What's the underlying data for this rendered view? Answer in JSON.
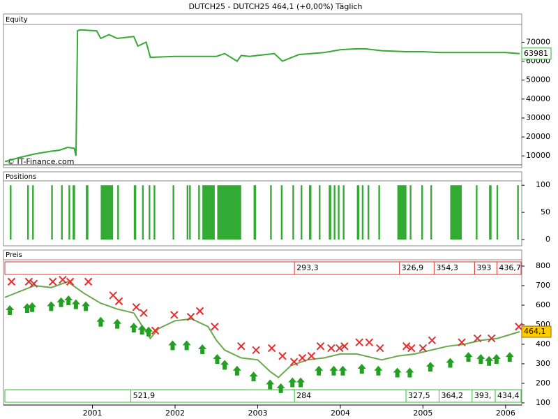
{
  "title": "DUTCH25 - DUTCH25    464,1 (+0,00%)    Täglich",
  "chart_data": [
    {
      "type": "line",
      "title": "Equity",
      "annotation": "© IT-Finance.com",
      "xlim": [
        1999.94,
        2006.17
      ],
      "ylim": [
        5300,
        79000
      ],
      "yticks": [
        10000,
        20000,
        30000,
        40000,
        50000,
        60000,
        70000
      ],
      "series": [
        {
          "name": "Equity",
          "color": "#33aa33",
          "x": [
            1999.94,
            2000.1,
            2000.3,
            2000.5,
            2000.6,
            2000.7,
            2000.78,
            2000.8,
            2000.82,
            2000.85,
            2001.05,
            2001.1,
            2001.2,
            2001.3,
            2001.5,
            2001.55,
            2001.65,
            2001.7,
            2002.0,
            2002.5,
            2002.6,
            2002.75,
            2002.8,
            2002.9,
            2003.0,
            2003.2,
            2003.3,
            2003.5,
            2003.8,
            2004.0,
            2004.2,
            2004.3,
            2004.5,
            2004.8,
            2005.0,
            2005.2,
            2005.5,
            2005.8,
            2006.0,
            2006.17
          ],
          "values": [
            7000,
            9000,
            11000,
            12500,
            13000,
            14500,
            14000,
            10000,
            76000,
            76500,
            76000,
            72000,
            74000,
            72000,
            73000,
            68000,
            70000,
            62000,
            62500,
            62500,
            64000,
            60000,
            63000,
            62500,
            63000,
            64000,
            60000,
            63500,
            64500,
            66000,
            66500,
            66500,
            65500,
            65000,
            65000,
            64500,
            64500,
            64500,
            64500,
            63981
          ]
        }
      ]
    },
    {
      "type": "bar",
      "title": "Positions",
      "xlim": [
        1999.94,
        2006.17
      ],
      "ylim": [
        -9,
        108
      ],
      "yticks": [
        0,
        50,
        100
      ],
      "color": "#33aa33",
      "x0": [
        2000.0,
        2000.21,
        2000.27,
        2000.5,
        2000.62,
        2000.71,
        2000.76,
        2000.92,
        2001.1,
        2001.3,
        2001.5,
        2001.6,
        2001.68,
        2001.74,
        2001.97,
        2002.14,
        2002.17,
        2002.28,
        2002.33,
        2002.51,
        2002.95,
        2003.15,
        2003.28,
        2003.42,
        2003.52,
        2003.62,
        2003.74,
        2003.86,
        2003.92,
        2003.97,
        2004.03,
        2004.2,
        2004.26,
        2004.33,
        2004.46,
        2004.69,
        2004.84,
        2004.98,
        2005.09,
        2005.33,
        2005.64,
        2005.8,
        2005.89,
        2006.14
      ],
      "x1": [
        2000.02,
        2000.23,
        2000.29,
        2000.52,
        2000.64,
        2000.73,
        2000.79,
        2000.95,
        2001.25,
        2001.32,
        2001.53,
        2001.62,
        2001.7,
        2001.76,
        2001.99,
        2002.16,
        2002.19,
        2002.3,
        2002.48,
        2002.8,
        2002.98,
        2003.17,
        2003.3,
        2003.44,
        2003.54,
        2003.65,
        2003.76,
        2003.89,
        2003.94,
        2003.99,
        2004.05,
        2004.23,
        2004.28,
        2004.35,
        2004.48,
        2004.8,
        2004.86,
        2005.0,
        2005.11,
        2005.47,
        2005.66,
        2005.83,
        2005.91,
        2006.16
      ],
      "values": [
        100,
        100,
        100,
        100,
        100,
        100,
        100,
        100,
        100,
        100,
        100,
        100,
        100,
        100,
        100,
        100,
        100,
        100,
        100,
        100,
        100,
        100,
        100,
        100,
        100,
        100,
        100,
        100,
        100,
        100,
        100,
        100,
        100,
        100,
        100,
        100,
        100,
        100,
        100,
        100,
        100,
        100,
        100,
        100
      ]
    },
    {
      "type": "line",
      "title": "Preis",
      "last_label": "464,1",
      "xlim": [
        1999.94,
        2006.17
      ],
      "xticks": [
        2001,
        2002,
        2003,
        2004,
        2005,
        2006
      ],
      "ylim": [
        89,
        875
      ],
      "yticks": [
        100,
        200,
        300,
        400,
        500,
        600,
        700,
        800
      ],
      "series": [
        {
          "name": "Preis",
          "color": "#6aa84f",
          "x": [
            1999.94,
            2000.0,
            2000.3,
            2000.5,
            2000.7,
            2000.9,
            2001.1,
            2001.3,
            2001.5,
            2001.7,
            2001.8,
            2002.0,
            2002.2,
            2002.4,
            2002.5,
            2002.6,
            2002.8,
            2003.0,
            2003.15,
            2003.25,
            2003.4,
            2003.6,
            2003.8,
            2004.0,
            2004.2,
            2004.5,
            2004.7,
            2004.9,
            2005.1,
            2005.3,
            2005.5,
            2005.7,
            2005.9,
            2006.17
          ],
          "values": [
            640,
            650,
            700,
            690,
            720,
            660,
            610,
            580,
            560,
            430,
            480,
            520,
            530,
            490,
            420,
            370,
            330,
            320,
            260,
            230,
            290,
            320,
            330,
            350,
            350,
            320,
            340,
            350,
            370,
            390,
            400,
            420,
            430,
            464.1
          ]
        },
        {
          "name": "Kauf",
          "color": "#22a022",
          "x": [
            2000.0,
            2000.21,
            2000.27,
            2000.5,
            2000.62,
            2000.71,
            2000.8,
            2000.92,
            2001.1,
            2001.3,
            2001.5,
            2001.6,
            2001.68,
            2001.97,
            2002.14,
            2002.33,
            2002.51,
            2002.6,
            2002.75,
            2002.95,
            2003.15,
            2003.28,
            2003.42,
            2003.52,
            2003.74,
            2003.92,
            2004.03,
            2004.26,
            2004.46,
            2004.69,
            2004.84,
            2005.09,
            2005.33,
            2005.55,
            2005.7,
            2005.8,
            2005.89,
            2006.05
          ],
          "values": [
            600,
            610,
            615,
            620,
            640,
            650,
            630,
            620,
            540,
            530,
            510,
            500,
            490,
            420,
            420,
            400,
            350,
            320,
            290,
            260,
            220,
            200,
            230,
            230,
            290,
            290,
            290,
            300,
            290,
            280,
            280,
            310,
            330,
            360,
            350,
            340,
            350,
            360
          ]
        },
        {
          "name": "Verkauf",
          "color": "#e03030",
          "x": [
            2000.02,
            2000.23,
            2000.29,
            2000.52,
            2000.64,
            2000.73,
            2000.95,
            2001.25,
            2001.32,
            2001.53,
            2001.62,
            2001.76,
            2001.99,
            2002.19,
            2002.3,
            2002.48,
            2002.8,
            2002.98,
            2003.17,
            2003.3,
            2003.44,
            2003.54,
            2003.65,
            2003.76,
            2003.89,
            2003.99,
            2004.05,
            2004.23,
            2004.35,
            2004.48,
            2004.8,
            2004.86,
            2005.0,
            2005.11,
            2005.47,
            2005.66,
            2005.83,
            2006.16
          ],
          "values": [
            720,
            720,
            710,
            720,
            730,
            720,
            720,
            650,
            620,
            590,
            560,
            470,
            550,
            540,
            570,
            490,
            390,
            370,
            380,
            340,
            310,
            330,
            340,
            390,
            380,
            380,
            390,
            410,
            410,
            380,
            390,
            380,
            380,
            420,
            410,
            430,
            430,
            490
          ]
        }
      ],
      "top_labels": {
        "x": [
          2003.47,
          2004.74,
          2005.16,
          2005.65,
          2005.92
        ],
        "labels": [
          "293,3",
          "326,9",
          "354,3",
          "393",
          "436,7"
        ]
      },
      "bottom_labels": {
        "x": [
          2001.49,
          2003.47,
          2004.82,
          2005.22,
          2005.62,
          2005.9
        ],
        "labels": [
          "521,9",
          "284",
          "327,5",
          "364,2",
          "393,",
          "434,4"
        ]
      }
    }
  ]
}
